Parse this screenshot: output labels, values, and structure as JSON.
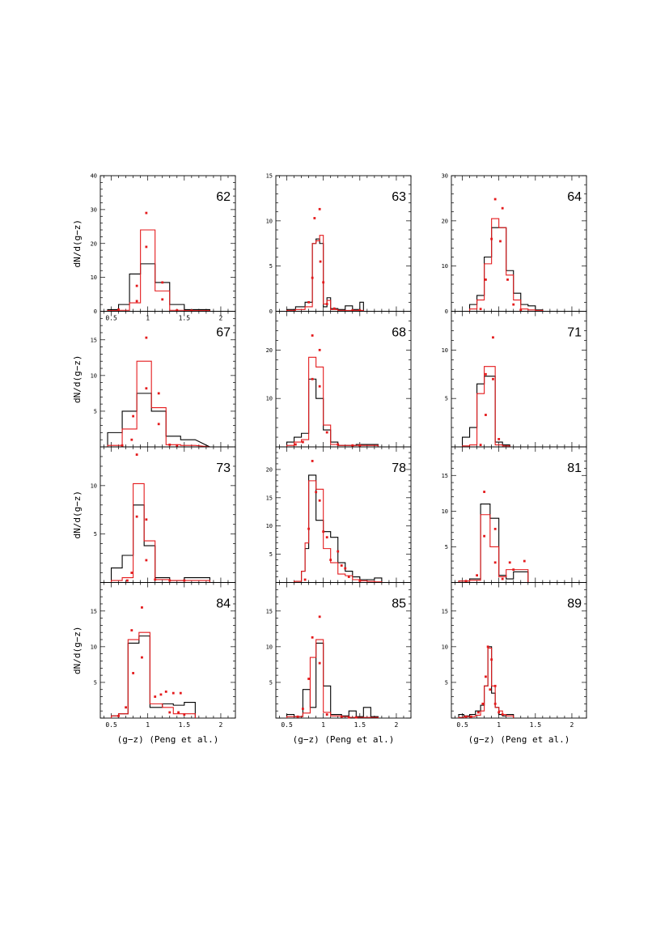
{
  "figure": {
    "xlabel": "(g−z) (Peng et al.)",
    "ylabel": "dN/d(g−z)",
    "colors": {
      "observed": "#000000",
      "model": "#e41a1c"
    }
  },
  "chart_data": [
    {
      "type": "bar",
      "id": "62",
      "xlim": [
        0.35,
        2.2
      ],
      "ylim": [
        0,
        40
      ],
      "yticks": [
        0,
        10,
        20,
        30,
        40
      ],
      "xticklabels_shown": true,
      "bins": [
        0.45,
        0.6,
        0.75,
        0.9,
        1.1,
        1.3,
        1.5,
        1.7,
        1.85
      ],
      "black": [
        0.5,
        2,
        11,
        14,
        8.5,
        2,
        0.5,
        0.5
      ],
      "red": [
        0.2,
        0.3,
        2.5,
        24,
        6,
        0.3,
        0.2,
        0.2
      ],
      "points": [
        [
          0.6,
          0.5
        ],
        [
          0.85,
          3
        ],
        [
          0.85,
          7.5
        ],
        [
          0.98,
          29
        ],
        [
          0.98,
          19
        ],
        [
          1.2,
          8.5
        ],
        [
          1.2,
          3.5
        ],
        [
          1.4,
          0.3
        ],
        [
          1.6,
          0.2
        ]
      ]
    },
    {
      "type": "bar",
      "id": "63",
      "xlim": [
        0.35,
        2.2
      ],
      "ylim": [
        0,
        15
      ],
      "yticks": [
        0,
        5,
        10,
        15
      ],
      "xticklabels_shown": false,
      "bins": [
        0.5,
        0.62,
        0.75,
        0.85,
        0.9,
        0.95,
        1.0,
        1.05,
        1.1,
        1.2,
        1.3,
        1.4,
        1.5,
        1.55
      ],
      "black": [
        0.2,
        0.5,
        1,
        7.5,
        8,
        7.5,
        0.5,
        1.5,
        0.3,
        0.2,
        0.6,
        0.2,
        1
      ],
      "red": [
        0.1,
        0.2,
        0.5,
        7.5,
        7.8,
        8.4,
        0.8,
        1.2,
        0.2,
        0.1,
        0.1,
        0.1,
        0.1
      ],
      "points": [
        [
          0.8,
          1
        ],
        [
          0.85,
          3.7
        ],
        [
          0.88,
          10.3
        ],
        [
          0.95,
          11.3
        ],
        [
          0.96,
          5.5
        ],
        [
          1.0,
          3.2
        ],
        [
          1.05,
          0.8
        ],
        [
          1.15,
          0.3
        ],
        [
          1.4,
          0.1
        ],
        [
          1.5,
          0.1
        ]
      ]
    },
    {
      "type": "bar",
      "id": "64",
      "xlim": [
        0.35,
        2.2
      ],
      "ylim": [
        0,
        30
      ],
      "yticks": [
        0,
        10,
        20,
        30
      ],
      "xticklabels_shown": false,
      "bins": [
        0.6,
        0.7,
        0.8,
        0.9,
        1.0,
        1.1,
        1.2,
        1.3,
        1.4,
        1.5,
        1.6
      ],
      "black": [
        1.5,
        3.5,
        12,
        18.5,
        18.5,
        9,
        4,
        1.5,
        1.2,
        0.3
      ],
      "red": [
        0.5,
        2.5,
        10.5,
        20.5,
        18.5,
        8,
        2.5,
        0.5,
        0.3,
        0.2
      ],
      "points": [
        [
          0.75,
          0.5
        ],
        [
          0.82,
          7
        ],
        [
          0.9,
          16
        ],
        [
          0.95,
          24.8
        ],
        [
          1.02,
          15.5
        ],
        [
          1.05,
          22.8
        ],
        [
          1.12,
          7
        ],
        [
          1.2,
          1.5
        ],
        [
          1.3,
          0.3
        ]
      ]
    },
    {
      "type": "bar",
      "id": "67",
      "xlim": [
        0.35,
        2.2
      ],
      "ylim": [
        0,
        19
      ],
      "yticks": [
        0,
        5,
        10,
        15
      ],
      "xticklabels_shown": false,
      "bins": [
        0.45,
        0.65,
        0.85,
        1.05,
        1.25,
        1.45,
        1.65,
        1.85
      ],
      "black": [
        2,
        5,
        7.5,
        5,
        1.5,
        1
      ],
      "red": [
        0.2,
        2.5,
        12,
        5.5,
        0.3,
        0.2
      ],
      "points": [
        [
          0.65,
          0.2
        ],
        [
          0.78,
          1
        ],
        [
          0.8,
          4.3
        ],
        [
          0.98,
          15.3
        ],
        [
          0.98,
          8.2
        ],
        [
          1.15,
          7.5
        ],
        [
          1.15,
          3.2
        ],
        [
          1.3,
          0.3
        ],
        [
          1.4,
          0.2
        ]
      ]
    },
    {
      "type": "bar",
      "id": "68",
      "xlim": [
        0.35,
        2.2
      ],
      "ylim": [
        0,
        28
      ],
      "yticks": [
        0,
        10,
        20
      ],
      "xticklabels_shown": false,
      "bins": [
        0.5,
        0.6,
        0.7,
        0.8,
        0.9,
        1.0,
        1.1,
        1.2,
        1.3,
        1.45,
        1.6,
        1.75
      ],
      "black": [
        1,
        2,
        2.8,
        14,
        10,
        3.5,
        1,
        0.3,
        0.3,
        0.5,
        0.5
      ],
      "red": [
        0.3,
        1,
        1.5,
        18.5,
        16.5,
        4.5,
        0.5,
        0.3,
        0.3,
        0.3,
        0.3
      ],
      "points": [
        [
          0.62,
          0.5
        ],
        [
          0.72,
          1
        ],
        [
          0.85,
          23
        ],
        [
          0.85,
          14
        ],
        [
          0.95,
          20
        ],
        [
          0.95,
          12.5
        ],
        [
          1.05,
          3
        ],
        [
          1.2,
          0.5
        ],
        [
          1.4,
          0.3
        ],
        [
          1.5,
          0.3
        ]
      ]
    },
    {
      "type": "bar",
      "id": "71",
      "xlim": [
        0.35,
        2.2
      ],
      "ylim": [
        0,
        14
      ],
      "yticks": [
        0,
        5,
        10
      ],
      "xticklabels_shown": false,
      "bins": [
        0.5,
        0.6,
        0.7,
        0.8,
        0.95,
        1.05,
        1.15
      ],
      "black": [
        1,
        2,
        6.5,
        7.3,
        0.5,
        0.2
      ],
      "red": [
        0.1,
        0.2,
        5.5,
        8.3,
        0.2,
        0.1
      ],
      "points": [
        [
          0.75,
          0.2
        ],
        [
          0.82,
          7.5
        ],
        [
          0.82,
          3.3
        ],
        [
          0.92,
          11.3
        ],
        [
          0.92,
          7
        ],
        [
          1.0,
          0.8
        ]
      ]
    },
    {
      "type": "bar",
      "id": "73",
      "xlim": [
        0.35,
        2.2
      ],
      "ylim": [
        0,
        14
      ],
      "yticks": [
        0,
        5,
        10
      ],
      "xticklabels_shown": false,
      "bins": [
        0.5,
        0.65,
        0.8,
        0.95,
        1.1,
        1.3,
        1.5,
        1.65,
        1.85
      ],
      "black": [
        1.5,
        2.8,
        8,
        3.8,
        0.5,
        0.2,
        0.5,
        0.5
      ],
      "red": [
        0.2,
        0.5,
        10.2,
        4.3,
        0.3,
        0.2,
        0.2,
        0.2
      ],
      "points": [
        [
          0.72,
          0.2
        ],
        [
          0.78,
          1
        ],
        [
          0.85,
          13.2
        ],
        [
          0.85,
          6.8
        ],
        [
          0.98,
          6.5
        ],
        [
          0.98,
          2.3
        ],
        [
          1.1,
          0.3
        ],
        [
          1.3,
          0.2
        ],
        [
          1.5,
          0.2
        ]
      ]
    },
    {
      "type": "bar",
      "id": "78",
      "xlim": [
        0.35,
        2.2
      ],
      "ylim": [
        0,
        24
      ],
      "yticks": [
        0,
        5,
        10,
        15,
        20
      ],
      "xticklabels_shown": false,
      "bins": [
        0.6,
        0.7,
        0.75,
        0.8,
        0.9,
        1.0,
        1.1,
        1.2,
        1.3,
        1.4,
        1.5,
        1.6,
        1.7,
        1.8
      ],
      "black": [
        0.2,
        2,
        6,
        19,
        11,
        9,
        8,
        3.5,
        2,
        1,
        0.5,
        0.5,
        0.8
      ],
      "red": [
        0.2,
        2,
        7,
        18,
        16.5,
        6,
        3.5,
        1.5,
        1.2,
        0.5,
        0.3,
        0.2,
        0.1
      ],
      "points": [
        [
          0.75,
          0.5
        ],
        [
          0.8,
          9.5
        ],
        [
          0.85,
          21.5
        ],
        [
          0.9,
          16
        ],
        [
          0.95,
          14.5
        ],
        [
          1.0,
          9
        ],
        [
          1.05,
          8
        ],
        [
          1.1,
          4
        ],
        [
          1.2,
          5.5
        ],
        [
          1.25,
          3
        ],
        [
          1.3,
          2.5
        ],
        [
          1.35,
          1
        ],
        [
          1.5,
          0.3
        ]
      ]
    },
    {
      "type": "bar",
      "id": "81",
      "xlim": [
        0.35,
        2.2
      ],
      "ylim": [
        0,
        19
      ],
      "yticks": [
        0,
        5,
        10,
        15
      ],
      "xticklabels_shown": false,
      "bins": [
        0.45,
        0.6,
        0.75,
        0.88,
        1.0,
        1.1,
        1.2,
        1.4
      ],
      "black": [
        0.2,
        0.5,
        11,
        9,
        1,
        0.5,
        1.5
      ],
      "red": [
        0.2,
        0.3,
        9.5,
        5,
        0.8,
        1.8,
        1.8
      ],
      "points": [
        [
          0.55,
          0.2
        ],
        [
          0.7,
          1
        ],
        [
          0.8,
          12.7
        ],
        [
          0.8,
          6.5
        ],
        [
          0.95,
          7.5
        ],
        [
          0.95,
          2.8
        ],
        [
          1.05,
          0.5
        ],
        [
          1.15,
          2.8
        ],
        [
          1.2,
          1.8
        ],
        [
          1.35,
          3
        ]
      ]
    },
    {
      "type": "bar",
      "id": "84",
      "xlim": [
        0.35,
        2.2
      ],
      "ylim": [
        0,
        19
      ],
      "yticks": [
        0,
        5,
        10,
        15
      ],
      "xticklabels_shown": true,
      "bins": [
        0.5,
        0.6,
        0.73,
        0.88,
        1.03,
        1.2,
        1.35,
        1.5,
        1.65
      ],
      "black": [
        0.3,
        0.6,
        10.5,
        11.5,
        1.5,
        2,
        1.8,
        2.2
      ],
      "red": [
        0.3,
        0.6,
        11,
        12,
        2,
        1.5,
        0.6,
        0.6
      ],
      "points": [
        [
          0.6,
          0.3
        ],
        [
          0.7,
          1.5
        ],
        [
          0.78,
          12.3
        ],
        [
          0.8,
          6.3
        ],
        [
          0.92,
          15.5
        ],
        [
          0.92,
          8.5
        ],
        [
          1.1,
          3
        ],
        [
          1.18,
          3.3
        ],
        [
          1.25,
          3.7
        ],
        [
          1.3,
          0.8
        ],
        [
          1.35,
          3.5
        ],
        [
          1.42,
          0.8
        ],
        [
          1.45,
          3.5
        ],
        [
          1.5,
          0.5
        ]
      ]
    },
    {
      "type": "bar",
      "id": "85",
      "xlim": [
        0.35,
        2.2
      ],
      "ylim": [
        0,
        19
      ],
      "yticks": [
        0,
        5,
        10,
        15
      ],
      "xticklabels_shown": true,
      "bins": [
        0.5,
        0.6,
        0.72,
        0.82,
        0.9,
        1.0,
        1.1,
        1.25,
        1.35,
        1.45,
        1.55,
        1.65,
        1.75
      ],
      "black": [
        0.5,
        0.2,
        4,
        1.5,
        10.5,
        4.5,
        0.5,
        0.3,
        1,
        0.2,
        1.5,
        0.2
      ],
      "red": [
        0.2,
        0.2,
        0.7,
        8.5,
        11,
        0.8,
        0.3,
        0.2,
        0.1,
        0.1,
        0.1,
        0.1
      ],
      "points": [
        [
          0.65,
          0.2
        ],
        [
          0.72,
          1.3
        ],
        [
          0.8,
          5.5
        ],
        [
          0.85,
          11.3
        ],
        [
          0.95,
          14.2
        ],
        [
          0.95,
          7.7
        ],
        [
          1.05,
          0.5
        ],
        [
          1.25,
          0.2
        ],
        [
          1.35,
          0.1
        ],
        [
          1.45,
          0.1
        ]
      ]
    },
    {
      "type": "bar",
      "id": "89",
      "xlim": [
        0.35,
        2.2
      ],
      "ylim": [
        0,
        19
      ],
      "yticks": [
        0,
        5,
        10,
        15
      ],
      "xticklabels_shown": true,
      "bins": [
        0.45,
        0.52,
        0.6,
        0.68,
        0.75,
        0.8,
        0.85,
        0.9,
        0.95,
        1.0,
        1.05,
        1.1,
        1.2
      ],
      "black": [
        0.5,
        0.3,
        0.5,
        1,
        1.8,
        4.5,
        10,
        3.5,
        1.5,
        0.5,
        0.3,
        0.5
      ],
      "red": [
        0.1,
        0.2,
        0.2,
        0.4,
        1,
        4.5,
        9.8,
        4.5,
        1.5,
        1,
        0.5,
        0.3
      ],
      "points": [
        [
          0.55,
          0.2
        ],
        [
          0.62,
          0.2
        ],
        [
          0.72,
          0.8
        ],
        [
          0.78,
          2
        ],
        [
          0.82,
          5.8
        ],
        [
          0.85,
          10
        ],
        [
          0.88,
          4
        ],
        [
          0.9,
          8.2
        ],
        [
          0.95,
          4.5
        ],
        [
          0.95,
          2
        ],
        [
          1.0,
          0.8
        ],
        [
          1.05,
          0.5
        ]
      ]
    }
  ]
}
